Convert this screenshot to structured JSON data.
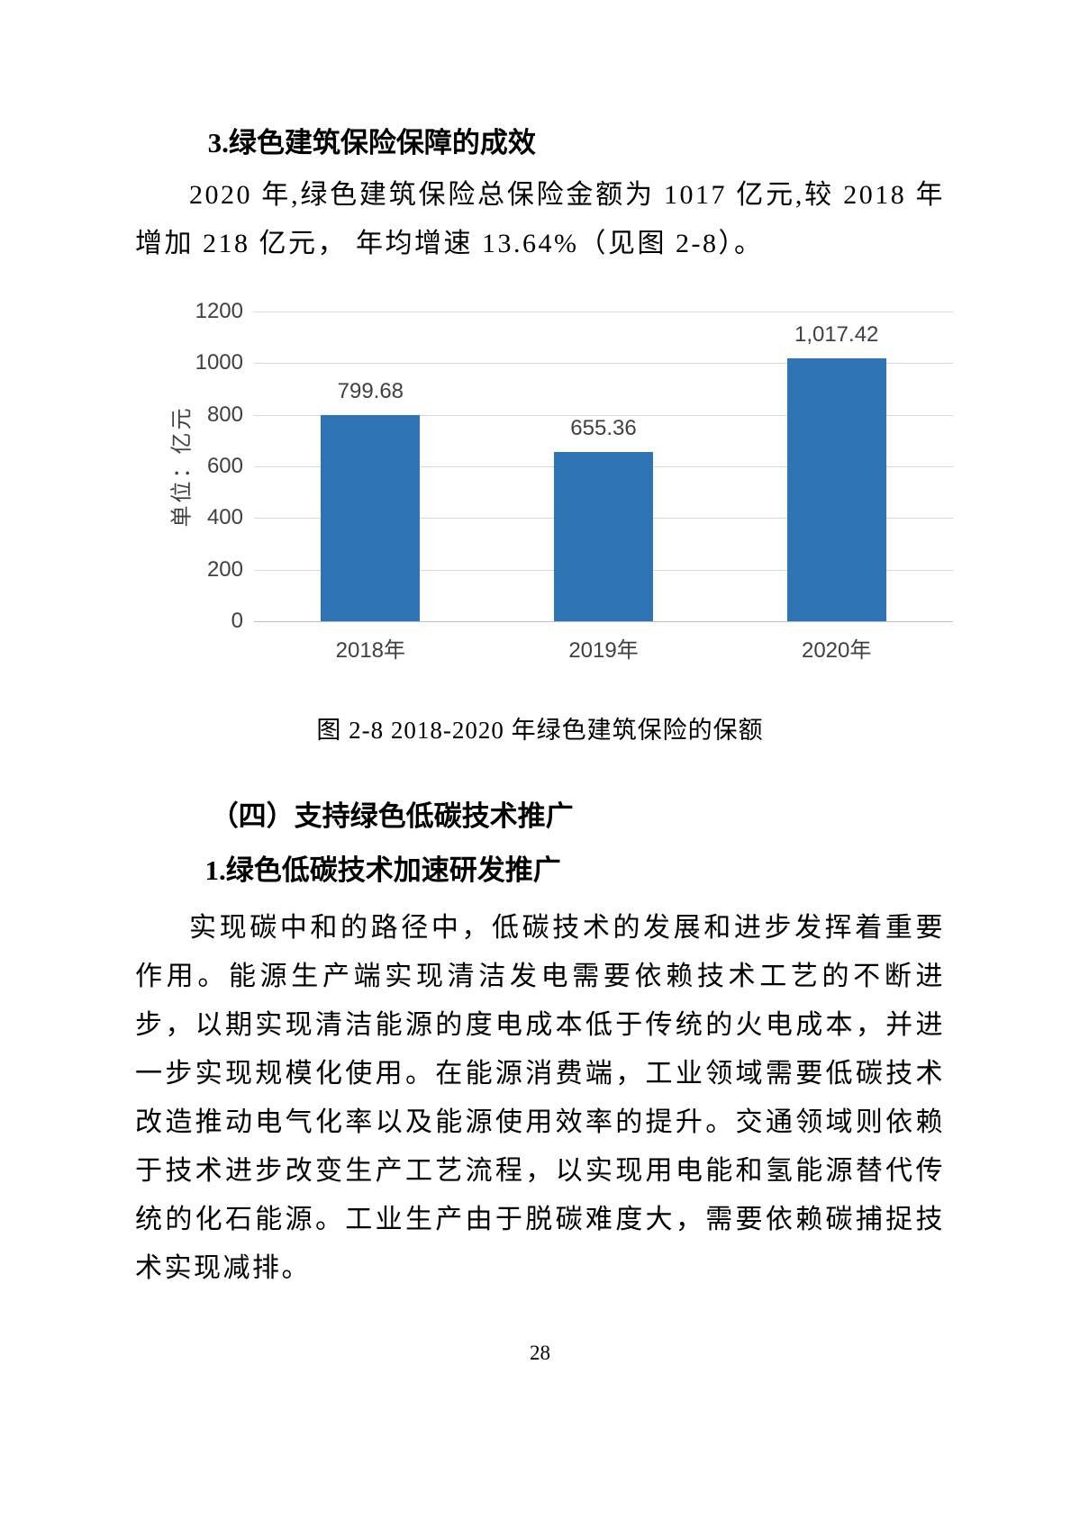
{
  "section3": {
    "heading": "3.绿色建筑保险保障的成效",
    "paragraph": "2020 年,绿色建筑保险总保险金额为 1017 亿元,较 2018 年增加 218 亿元， 年均增速 13.64%（见图 2-8）。"
  },
  "chart_data": {
    "type": "bar",
    "title": "",
    "categories": [
      "2018年",
      "2019年",
      "2020年"
    ],
    "values": [
      799.68,
      655.36,
      1017.42
    ],
    "value_labels": [
      "799.68",
      "655.36",
      "1,017.42"
    ],
    "xlabel": "",
    "ylabel": "单位：亿元",
    "ylim": [
      0,
      1200
    ],
    "yticks": [
      "1200",
      "1000",
      "800",
      "600",
      "400",
      "200",
      "0"
    ],
    "grid": "horizontal",
    "legend": "none",
    "bar_color": "#2F75B6"
  },
  "figure_caption": "图 2-8  2018-2020 年绿色建筑保险的保额",
  "section4": {
    "heading": "（四）支持绿色低碳技术推广",
    "subheading": "1.绿色低碳技术加速研发推广",
    "paragraph": "实现碳中和的路径中，低碳技术的发展和进步发挥着重要作用。能源生产端实现清洁发电需要依赖技术工艺的不断进步，以期实现清洁能源的度电成本低于传统的火电成本，并进一步实现规模化使用。在能源消费端，工业领域需要低碳技术改造推动电气化率以及能源使用效率的提升。交通领域则依赖于技术进步改变生产工艺流程，以实现用电能和氢能源替代传统的化石能源。工业生产由于脱碳难度大，需要依赖碳捕捉技术实现减排。"
  },
  "page": {
    "number": "28"
  }
}
